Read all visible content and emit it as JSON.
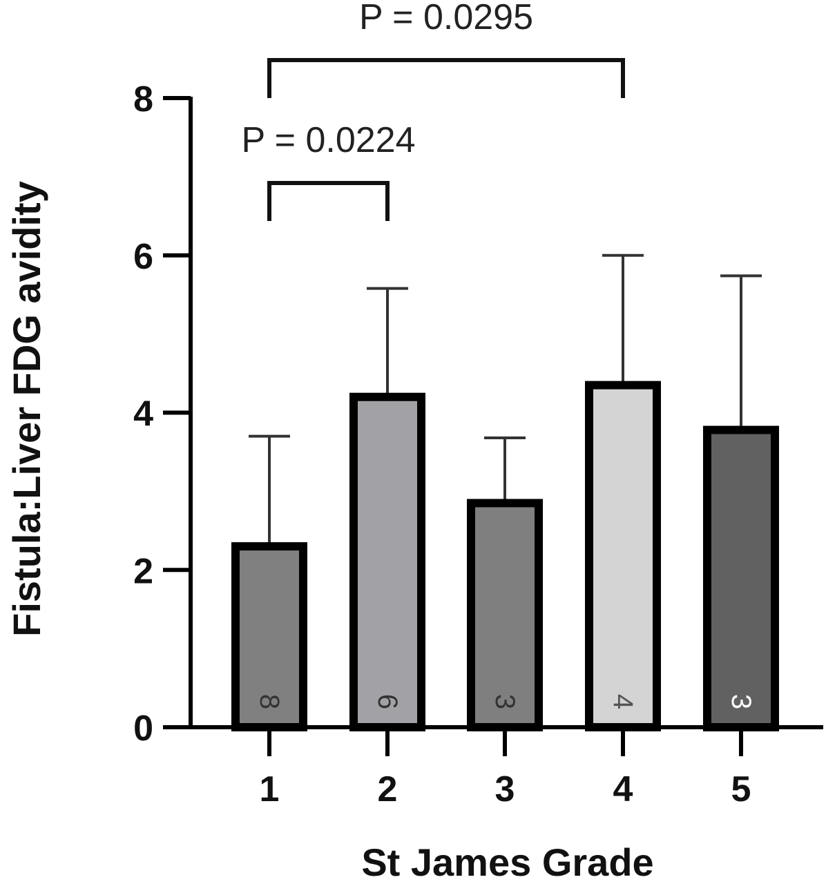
{
  "chart_data": {
    "type": "bar",
    "xlabel": "St James Grade",
    "ylabel": "Fistula:Liver FDG avidity",
    "categories": [
      "1",
      "2",
      "3",
      "4",
      "5"
    ],
    "values": [
      2.3,
      4.2,
      2.85,
      4.35,
      3.78
    ],
    "error_upper": [
      3.7,
      5.58,
      3.68,
      6.0,
      5.74
    ],
    "n_labels": [
      "8",
      "6",
      "3",
      "4",
      "3"
    ],
    "bar_colors": [
      "#808080",
      "#a2a2a6",
      "#7f7f7f",
      "#d4d4d4",
      "#616161"
    ],
    "n_label_colors": [
      "#333333",
      "#333333",
      "#333333",
      "#555555",
      "#ffffff"
    ],
    "ylim": [
      0,
      8
    ],
    "yticks": [
      "0",
      "2",
      "4",
      "6",
      "8"
    ],
    "grid": false,
    "comparisons": [
      {
        "from": "1",
        "to": "4",
        "label": "P = 0.0295"
      },
      {
        "from": "1",
        "to": "2",
        "label": "P = 0.0224"
      }
    ]
  }
}
